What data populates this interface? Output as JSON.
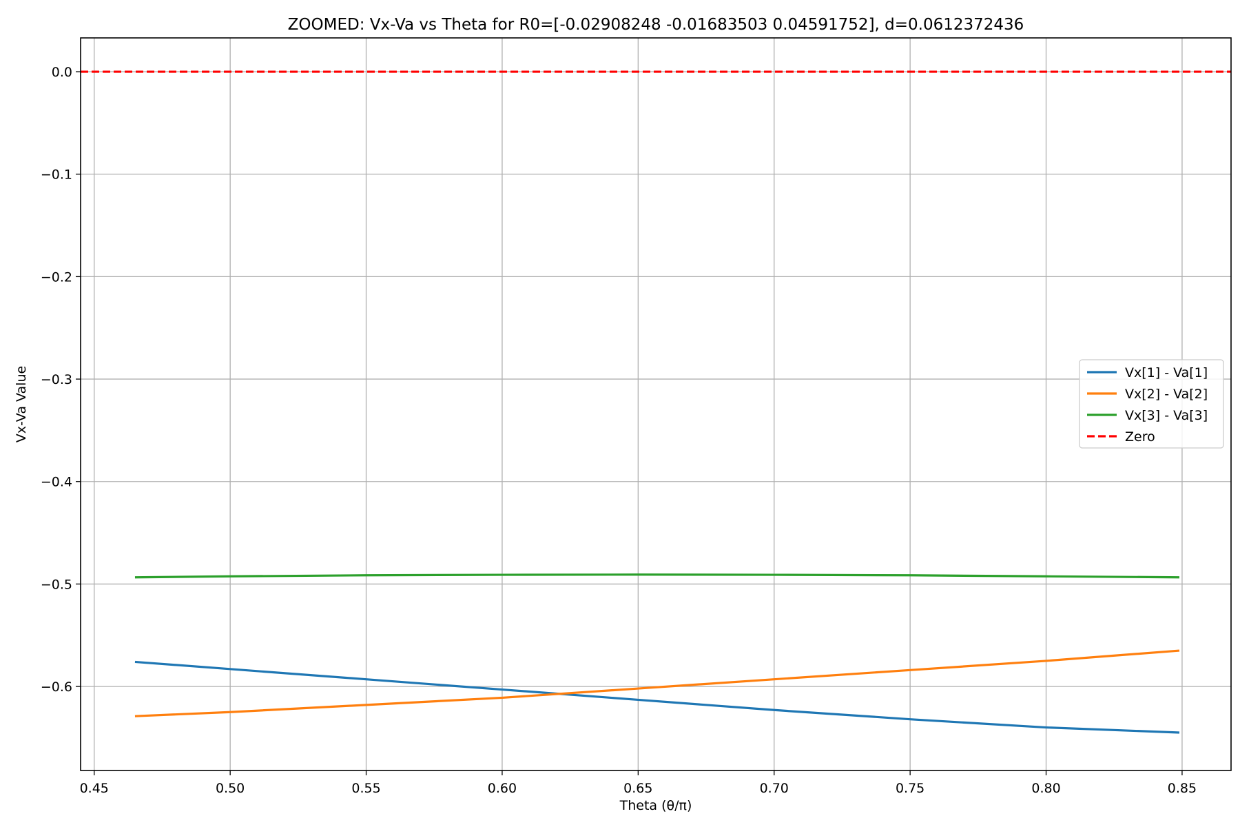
{
  "chart_data": {
    "type": "line",
    "title": "ZOOMED: Vx-Va vs Theta for R0=[-0.02908248 -0.01683503  0.04591752], d=0.0612372436",
    "xlabel": "Theta (θ/π)",
    "ylabel": "Vx-Va Value",
    "xlim": [
      0.445,
      0.868
    ],
    "ylim": [
      -0.682,
      0.033
    ],
    "grid": true,
    "legend_position": "center-right",
    "x_ticks": [
      0.45,
      0.5,
      0.55,
      0.6,
      0.65,
      0.7,
      0.75,
      0.8,
      0.85
    ],
    "x_tick_labels": [
      "0.45",
      "0.50",
      "0.55",
      "0.60",
      "0.65",
      "0.70",
      "0.75",
      "0.80",
      "0.85"
    ],
    "y_ticks": [
      0.0,
      -0.1,
      -0.2,
      -0.3,
      -0.4,
      -0.5,
      -0.6
    ],
    "y_tick_labels": [
      "0.0",
      "−0.1",
      "−0.2",
      "−0.3",
      "−0.4",
      "−0.5",
      "−0.6"
    ],
    "series": [
      {
        "name": "Vx[1] - Va[1]",
        "color": "#1f77b4",
        "style": "solid",
        "x": [
          0.465,
          0.5,
          0.55,
          0.6,
          0.65,
          0.7,
          0.75,
          0.8,
          0.849
        ],
        "y": [
          -0.576,
          -0.583,
          -0.593,
          -0.603,
          -0.613,
          -0.623,
          -0.632,
          -0.64,
          -0.645
        ]
      },
      {
        "name": "Vx[2] - Va[2]",
        "color": "#ff7f0e",
        "style": "solid",
        "x": [
          0.465,
          0.5,
          0.55,
          0.6,
          0.65,
          0.7,
          0.75,
          0.8,
          0.849
        ],
        "y": [
          -0.629,
          -0.625,
          -0.618,
          -0.611,
          -0.602,
          -0.593,
          -0.584,
          -0.575,
          -0.565
        ]
      },
      {
        "name": "Vx[3] - Va[3]",
        "color": "#2ca02c",
        "style": "solid",
        "x": [
          0.465,
          0.5,
          0.55,
          0.6,
          0.65,
          0.7,
          0.75,
          0.8,
          0.849
        ],
        "y": [
          -0.4935,
          -0.4925,
          -0.4915,
          -0.491,
          -0.4908,
          -0.491,
          -0.4915,
          -0.4925,
          -0.4935
        ]
      },
      {
        "name": "Zero",
        "color": "#ff0000",
        "style": "dashed",
        "x": [
          0.445,
          0.868
        ],
        "y": [
          0.0,
          0.0
        ]
      }
    ]
  }
}
